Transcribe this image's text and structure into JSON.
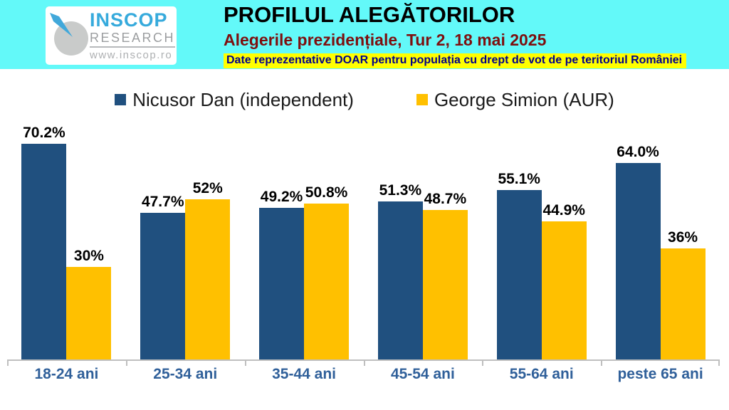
{
  "header": {
    "logo": {
      "name": "INSCOP",
      "sub": "RESEARCH",
      "url": "www.inscop.ro"
    },
    "title": "PROFILUL ALEGĂTORILOR",
    "subtitle": "Alegerile prezidențiale, Tur 2, 18 mai 2025",
    "note": "Date reprezentative DOAR pentru populația cu drept de vot de pe teritoriul României"
  },
  "colors": {
    "header_bg": "#63F9F9",
    "note_bg": "#FFFF00",
    "note_text": "#00008B",
    "subtitle_text": "#7E0F0F",
    "dan_blue": "#20507F",
    "simion_yellow": "#FFC000",
    "category_label": "#30609A",
    "axis_line": "#BFBFBF"
  },
  "chart_data": {
    "type": "bar",
    "title": "PROFILUL ALEGĂTORILOR",
    "subtitle": "Alegerile prezidențiale, Tur 2, 18 mai 2025",
    "categories": [
      "18-24 ani",
      "25-34 ani",
      "35-44 ani",
      "45-54 ani",
      "55-64 ani",
      "peste 65 ani"
    ],
    "series": [
      {
        "name": "Nicusor Dan (independent)",
        "color": "#20507F",
        "values": [
          70.2,
          47.7,
          49.2,
          51.3,
          55.1,
          64.0
        ],
        "labels": [
          "70.2%",
          "47.7%",
          "49.2%",
          "51.3%",
          "55.1%",
          "64.0%"
        ]
      },
      {
        "name": "George Simion (AUR)",
        "color": "#FFC000",
        "values": [
          30,
          52,
          50.8,
          48.7,
          44.9,
          36
        ],
        "labels": [
          "30%",
          "52%",
          "50.8%",
          "48.7%",
          "44.9%",
          "36%"
        ]
      }
    ],
    "ylim": [
      0,
      75
    ],
    "value_labels": true,
    "grid": false,
    "legend_position": "top",
    "xlabel": "",
    "ylabel": ""
  }
}
